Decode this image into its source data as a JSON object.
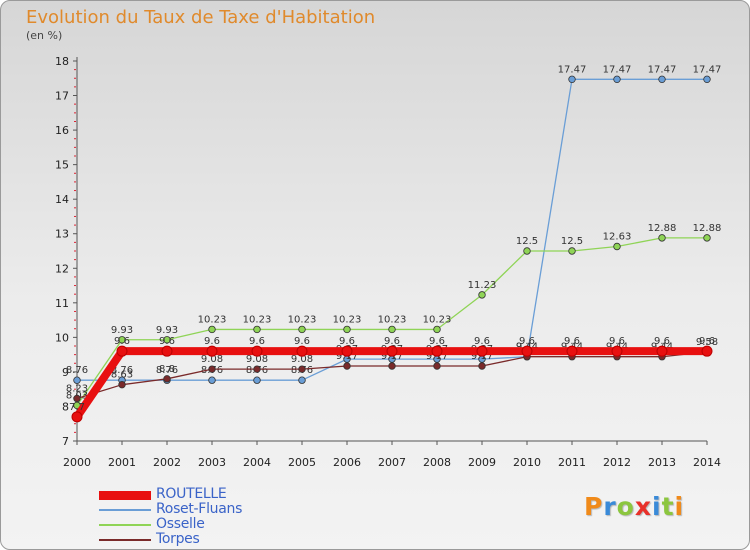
{
  "chart_data": {
    "type": "line",
    "title": "Evolution du Taux de Taxe d'Habitation",
    "subtitle": "(en %)",
    "categories": [
      "2000",
      "2001",
      "2002",
      "2003",
      "2004",
      "2005",
      "2006",
      "2007",
      "2008",
      "2009",
      "2010",
      "2011",
      "2012",
      "2013",
      "2014"
    ],
    "ylim": [
      7,
      18
    ],
    "yticks": [
      7,
      8,
      9,
      10,
      11,
      12,
      13,
      14,
      15,
      16,
      17,
      18
    ],
    "series": [
      {
        "name": "ROUTELLE",
        "color": "#e81010",
        "values": [
          7.7,
          9.6,
          9.6,
          9.6,
          9.6,
          9.6,
          9.6,
          9.6,
          9.6,
          9.6,
          9.6,
          9.6,
          9.6,
          9.6,
          9.6
        ],
        "labels": [
          "7.7",
          "9.6",
          "9.6",
          "9.6",
          "9.6",
          "9.6",
          "9.6",
          "9.6",
          "9.6",
          "9.6",
          "9.6",
          "9.6",
          "9.6",
          "9.6",
          "9.6"
        ]
      },
      {
        "name": "Roset-Fluans",
        "color": "#6a9ed6",
        "values": [
          8.76,
          8.76,
          8.76,
          8.76,
          8.76,
          8.76,
          9.37,
          9.37,
          9.37,
          9.37,
          9.44,
          17.47,
          17.47,
          17.47,
          17.47
        ],
        "labels": [
          "8.76",
          "8.76",
          "8.76",
          "8.76",
          "8.76",
          "8.76",
          "9.37",
          "9.37",
          "9.37",
          "9.37",
          "9.44",
          "17.47",
          "17.47",
          "17.47",
          "17.47"
        ]
      },
      {
        "name": "Osselle",
        "color": "#8fd456",
        "values": [
          8.03,
          9.93,
          9.93,
          10.23,
          10.23,
          10.23,
          10.23,
          10.23,
          10.23,
          11.23,
          12.5,
          12.5,
          12.63,
          12.88,
          12.88
        ],
        "labels": [
          "8.03",
          "9.93",
          "9.93",
          "10.23",
          "10.23",
          "10.23",
          "10.23",
          "10.23",
          "10.23",
          "11.23",
          "12.5",
          "12.5",
          "12.63",
          "12.88",
          "12.88"
        ]
      },
      {
        "name": "Torpes",
        "color": "#7a2a2a",
        "values": [
          8.23,
          8.63,
          8.8,
          9.08,
          9.08,
          9.08,
          9.17,
          9.17,
          9.17,
          9.17,
          9.44,
          9.44,
          9.44,
          9.44,
          9.58
        ],
        "labels": [
          "8.23",
          "8.63",
          "8.8",
          "9.08",
          "9.08",
          "9.08",
          "9.17",
          "9.17",
          "9.17",
          "9.17",
          "9.44",
          "9.44",
          "9.44",
          "9.44",
          "9.58"
        ]
      }
    ],
    "legend_position": "bottom-left"
  },
  "logo": {
    "text": "Proxiti",
    "colors": [
      "#f08a1a",
      "#3a8ad8",
      "#8cc63f",
      "#e8312a",
      "#3a8ad8",
      "#8cc63f",
      "#f08a1a"
    ]
  }
}
